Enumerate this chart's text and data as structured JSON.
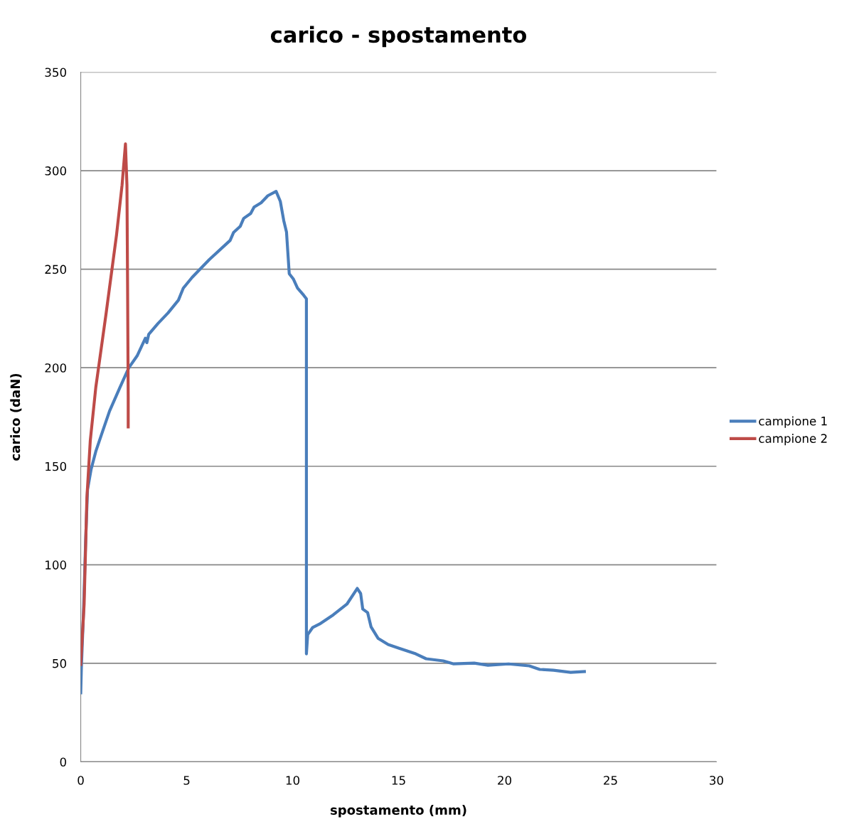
{
  "chart_data": {
    "type": "line",
    "title": "carico - spostamento",
    "xlabel": "spostamento (mm)",
    "ylabel": "carico (daN)",
    "xlim": [
      0,
      30
    ],
    "xticks": [
      0,
      5,
      10,
      15,
      20,
      25,
      30
    ],
    "ylim": [
      0,
      350
    ],
    "yticks": [
      0,
      50,
      100,
      150,
      200,
      250,
      300,
      350
    ],
    "grid": "y",
    "legend": "right",
    "marker": "none",
    "line_style": "solid",
    "series": [
      {
        "name": "campione 1",
        "color": "#4a7ebb",
        "x": [
          0,
          0.03,
          0.13,
          0.23,
          0.32,
          0.49,
          0.71,
          1.04,
          1.36,
          1.85,
          2.27,
          2.66,
          3.05,
          3.12,
          3.21,
          3.64,
          4.12,
          4.61,
          4.84,
          5.26,
          6.07,
          7.05,
          7.21,
          7.53,
          7.69,
          8.02,
          8.18,
          8.51,
          8.83,
          9.22,
          9.42,
          9.58,
          9.71,
          9.84,
          10.03,
          10.23,
          10.52,
          10.65,
          10.65,
          10.71,
          10.94,
          11.27,
          11.92,
          12.56,
          13.05,
          13.21,
          13.31,
          13.54,
          13.7,
          14.03,
          14.51,
          15.0,
          15.81,
          16.3,
          17.11,
          17.6,
          18.57,
          19.22,
          20.19,
          21.17,
          21.66,
          22.31,
          23.12,
          23.77
        ],
        "values": [
          35,
          47.6,
          76,
          112,
          138,
          148.5,
          157.5,
          168,
          178,
          190,
          200,
          206,
          215,
          212.7,
          217,
          222.4,
          227.8,
          234.3,
          240.4,
          245.9,
          254.9,
          264.6,
          268.6,
          271.8,
          275.8,
          278.3,
          281.5,
          283.7,
          287.3,
          289.5,
          284.4,
          274.7,
          268.9,
          247.7,
          245.1,
          240.4,
          236.8,
          235,
          54.8,
          64.5,
          68.1,
          69.9,
          74.6,
          80,
          88,
          85.4,
          77.5,
          75.7,
          68.5,
          62.7,
          59.5,
          57.7,
          54.8,
          52.3,
          51.2,
          49.7,
          50.1,
          49,
          49.7,
          48.7,
          46.9,
          46.5,
          45.4,
          45.8
        ]
      },
      {
        "name": "campione 2",
        "color": "#be4b48",
        "x": [
          0,
          0.16,
          0.29,
          0.45,
          0.71,
          1.2,
          1.69,
          1.95,
          2.11,
          2.18,
          2.21,
          2.24,
          2.24
        ],
        "values": [
          49.4,
          80,
          134,
          163,
          190,
          227.8,
          267.5,
          292.7,
          313.6,
          292.7,
          242,
          184.6,
          170
        ]
      }
    ]
  }
}
